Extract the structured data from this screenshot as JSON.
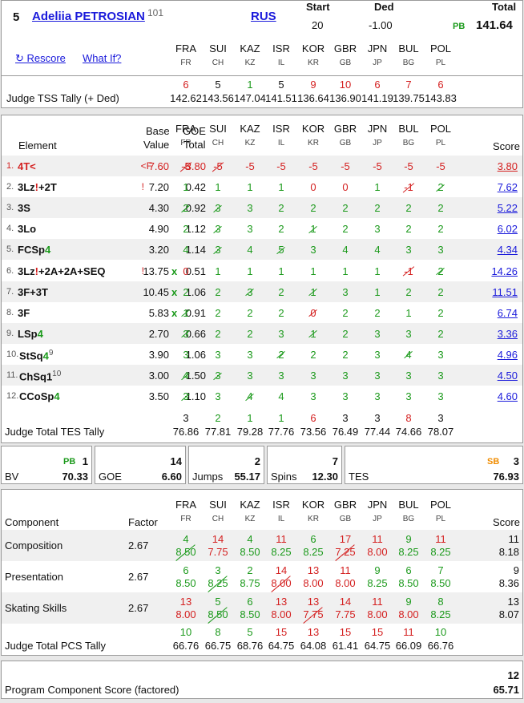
{
  "header": {
    "rank": "5",
    "skater_name": "Adeliia PETROSIAN",
    "start_number": "101",
    "nation": "RUS",
    "start_label": "Start",
    "start_value": "20",
    "ded_label": "Ded",
    "ded_value": "-1.00",
    "total_label": "Total",
    "pb_label": "PB",
    "total_value": "141.64",
    "rescore_label": "↻ Rescore",
    "whatif_label": "What If?",
    "tss_label": "Judge TSS Tally (+ Ded)"
  },
  "judges": [
    {
      "code": "FRA",
      "cc": "FR"
    },
    {
      "code": "SUI",
      "cc": "CH"
    },
    {
      "code": "KAZ",
      "cc": "KZ"
    },
    {
      "code": "ISR",
      "cc": "IL"
    },
    {
      "code": "KOR",
      "cc": "KR"
    },
    {
      "code": "GBR",
      "cc": "GB"
    },
    {
      "code": "JPN",
      "cc": "JP"
    },
    {
      "code": "BUL",
      "cc": "BG"
    },
    {
      "code": "POL",
      "cc": "PL"
    }
  ],
  "tss_tally": [
    {
      "rank": "6",
      "score": "142.62",
      "color": "red"
    },
    {
      "rank": "5",
      "score": "143.56",
      "color": "black"
    },
    {
      "rank": "1",
      "score": "147.04",
      "color": "green"
    },
    {
      "rank": "5",
      "score": "141.51",
      "color": "black"
    },
    {
      "rank": "9",
      "score": "136.64",
      "color": "red"
    },
    {
      "rank": "10",
      "score": "136.90",
      "color": "red"
    },
    {
      "rank": "6",
      "score": "141.19",
      "color": "red"
    },
    {
      "rank": "7",
      "score": "139.75",
      "color": "red"
    },
    {
      "rank": "6",
      "score": "143.83",
      "color": "red"
    }
  ],
  "elements_header": {
    "element": "Element",
    "base1": "Base",
    "base2": "Value",
    "goe1": "GOE",
    "goe2": "Total",
    "score": "Score"
  },
  "elements": [
    {
      "num": "1.",
      "name": "4T<",
      "note": "<F",
      "base": "7.60",
      "goe": "-3.80",
      "marks": [
        "-5",
        "-5",
        "-5",
        "-5",
        "-5",
        "-5",
        "-5",
        "-5",
        "-5"
      ],
      "slash": [
        0,
        1
      ],
      "score": "3.80",
      "red_row": true
    },
    {
      "num": "2.",
      "name": "3Lz!+2T",
      "note": "!",
      "base": "7.20",
      "goe": "0.42",
      "marks": [
        "1",
        "1",
        "1",
        "1",
        "0",
        "0",
        "1",
        "-1",
        "2"
      ],
      "slash": [
        7,
        8
      ],
      "score": "7.62"
    },
    {
      "num": "3.",
      "name": "3S",
      "note": "",
      "base": "4.30",
      "goe": "0.92",
      "marks": [
        "2",
        "3",
        "3",
        "2",
        "2",
        "2",
        "2",
        "2",
        "2"
      ],
      "slash": [
        0,
        1
      ],
      "score": "5.22"
    },
    {
      "num": "4.",
      "name": "3Lo",
      "note": "",
      "base": "4.90",
      "goe": "1.12",
      "marks": [
        "2",
        "3",
        "3",
        "2",
        "1",
        "2",
        "3",
        "2",
        "2"
      ],
      "slash": [
        1,
        4
      ],
      "score": "6.02"
    },
    {
      "num": "5.",
      "name": "FCSp4",
      "note": "",
      "base": "3.20",
      "goe": "1.14",
      "marks": [
        "4",
        "3",
        "4",
        "5",
        "3",
        "4",
        "4",
        "3",
        "3"
      ],
      "slash": [
        1,
        3
      ],
      "score": "4.34"
    },
    {
      "num": "6.",
      "name": "3Lz!+2A+2A+SEQ",
      "note": "!",
      "base": "13.75",
      "x": "x",
      "goe": "0.51",
      "marks": [
        "0",
        "1",
        "1",
        "1",
        "1",
        "1",
        "1",
        "-1",
        "2"
      ],
      "slash": [
        7,
        8
      ],
      "score": "14.26"
    },
    {
      "num": "7.",
      "name": "3F+3T",
      "note": "",
      "base": "10.45",
      "x": "x",
      "goe": "1.06",
      "marks": [
        "2",
        "2",
        "3",
        "2",
        "1",
        "3",
        "1",
        "2",
        "2"
      ],
      "slash": [
        2,
        4
      ],
      "score": "11.51"
    },
    {
      "num": "8.",
      "name": "3F",
      "note": "",
      "base": "5.83",
      "x": "x",
      "goe": "0.91",
      "marks": [
        "1",
        "2",
        "2",
        "2",
        "0",
        "2",
        "2",
        "1",
        "2"
      ],
      "slash": [
        0,
        4
      ],
      "score": "6.74"
    },
    {
      "num": "9.",
      "name": "LSp4",
      "note": "",
      "base": "2.70",
      "goe": "0.66",
      "marks": [
        "3",
        "2",
        "2",
        "3",
        "1",
        "2",
        "3",
        "3",
        "2"
      ],
      "slash": [
        0,
        4
      ],
      "score": "3.36"
    },
    {
      "num": "10.",
      "name": "StSq4",
      "sup": "9",
      "note": "",
      "base": "3.90",
      "goe": "1.06",
      "marks": [
        "3",
        "3",
        "3",
        "2",
        "2",
        "2",
        "3",
        "4",
        "3"
      ],
      "slash": [
        3,
        7
      ],
      "score": "4.96"
    },
    {
      "num": "11.",
      "name": "ChSq1",
      "sup": "10",
      "note": "",
      "base": "3.00",
      "goe": "1.50",
      "marks": [
        "4",
        "3",
        "3",
        "3",
        "3",
        "3",
        "3",
        "3",
        "3"
      ],
      "slash": [
        0,
        1
      ],
      "score": "4.50"
    },
    {
      "num": "12.",
      "name": "CCoSp4",
      "note": "",
      "base": "3.50",
      "goe": "1.10",
      "marks": [
        "3",
        "3",
        "4",
        "4",
        "3",
        "3",
        "3",
        "3",
        "3"
      ],
      "slash": [
        0,
        2
      ],
      "score": "4.60"
    }
  ],
  "tes_tally_label": "Judge Total TES Tally",
  "tes_tally": [
    {
      "rank": "3",
      "score": "76.86",
      "color": "black"
    },
    {
      "rank": "2",
      "score": "77.81",
      "color": "green"
    },
    {
      "rank": "1",
      "score": "79.28",
      "color": "green"
    },
    {
      "rank": "1",
      "score": "77.76",
      "color": "green"
    },
    {
      "rank": "6",
      "score": "73.56",
      "color": "red"
    },
    {
      "rank": "3",
      "score": "76.49",
      "color": "black"
    },
    {
      "rank": "3",
      "score": "77.44",
      "color": "black"
    },
    {
      "rank": "8",
      "score": "74.66",
      "color": "red"
    },
    {
      "rank": "3",
      "score": "78.07",
      "color": "black"
    }
  ],
  "summary": {
    "bv_pb": "PB",
    "bv_rank": "1",
    "bv_label": "BV",
    "bv_value": "70.33",
    "goe_rank": "14",
    "goe_label": "GOE",
    "goe_value": "6.60",
    "jumps_rank": "2",
    "jumps_label": "Jumps",
    "jumps_value": "55.17",
    "spins_rank": "7",
    "spins_label": "Spins",
    "spins_value": "12.30",
    "tes_sb": "SB",
    "tes_rank": "3",
    "tes_label": "TES",
    "tes_value": "76.93"
  },
  "components_header": {
    "component": "Component",
    "factor": "Factor",
    "score": "Score"
  },
  "components": [
    {
      "name": "Composition",
      "factor": "2.67",
      "ranks": [
        "4",
        "14",
        "4",
        "11",
        "6",
        "17",
        "11",
        "9",
        "11"
      ],
      "marks": [
        "8.50",
        "7.75",
        "8.50",
        "8.25",
        "8.25",
        "7.25",
        "8.00",
        "8.25",
        "8.25"
      ],
      "slash": [
        0,
        5
      ],
      "rank": "11",
      "score": "8.18"
    },
    {
      "name": "Presentation",
      "factor": "2.67",
      "ranks": [
        "6",
        "3",
        "2",
        "14",
        "13",
        "11",
        "9",
        "6",
        "7"
      ],
      "marks": [
        "8.50",
        "8.25",
        "8.75",
        "8.00",
        "8.00",
        "8.00",
        "8.25",
        "8.50",
        "8.50"
      ],
      "slash": [
        1,
        3
      ],
      "rank": "9",
      "score": "8.36"
    },
    {
      "name": "Skating Skills",
      "factor": "2.67",
      "ranks": [
        "13",
        "5",
        "6",
        "13",
        "13",
        "14",
        "11",
        "9",
        "8"
      ],
      "marks": [
        "8.00",
        "8.50",
        "8.50",
        "8.00",
        "7.75",
        "7.75",
        "8.00",
        "8.00",
        "8.25"
      ],
      "slash": [
        1,
        4
      ],
      "rank": "13",
      "score": "8.07"
    }
  ],
  "pcs_tally_label": "Judge Total PCS Tally",
  "pcs_tally": [
    {
      "rank": "10",
      "score": "66.76"
    },
    {
      "rank": "8",
      "score": "66.75"
    },
    {
      "rank": "5",
      "score": "68.76"
    },
    {
      "rank": "15",
      "score": "64.75"
    },
    {
      "rank": "13",
      "score": "64.08"
    },
    {
      "rank": "15",
      "score": "61.41"
    },
    {
      "rank": "15",
      "score": "64.75"
    },
    {
      "rank": "11",
      "score": "66.09"
    },
    {
      "rank": "10",
      "score": "66.76"
    }
  ],
  "pcs_total": {
    "label": "Program Component Score (factored)",
    "rank": "12",
    "value": "65.71"
  }
}
